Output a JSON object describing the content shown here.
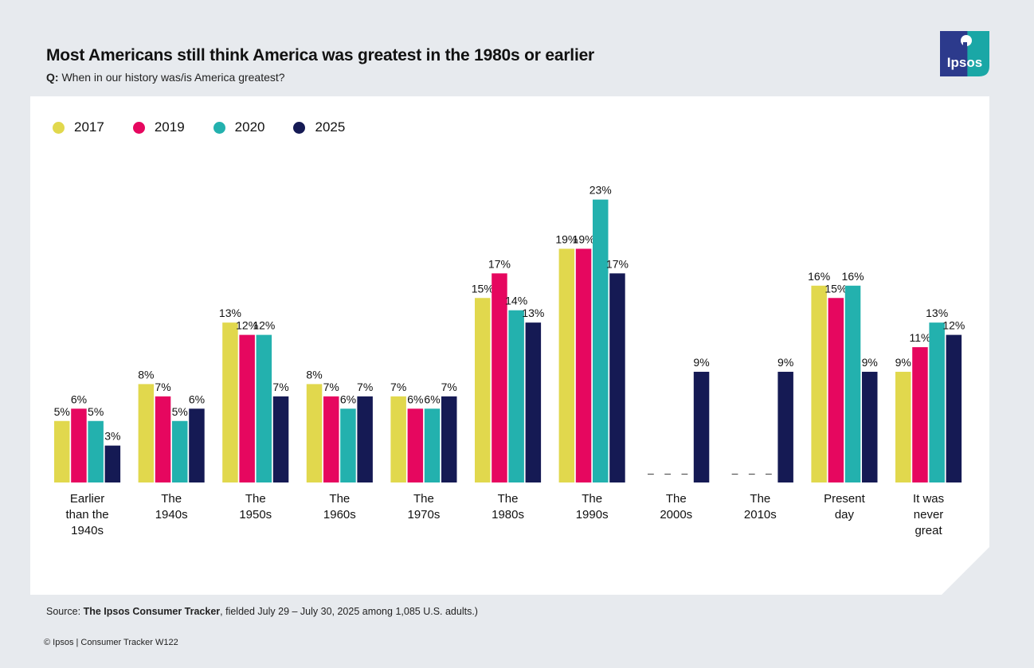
{
  "header": {
    "title": "Most Americans still think America was greatest in the 1980s or earlier",
    "question_prefix": "Q:",
    "question": "When in our history was/is America greatest?"
  },
  "brand": {
    "logo_text": "Ipsos"
  },
  "colors": {
    "2017": "#e1d84d",
    "2019": "#e6075f",
    "2020": "#23b1ae",
    "2025": "#151a54",
    "card": "#ffffff",
    "background": "#e7eaee"
  },
  "chart_data": {
    "type": "bar",
    "title": "Most Americans still think America was greatest in the 1980s or earlier",
    "xlabel": "",
    "ylabel": "",
    "ylim": [
      0,
      25
    ],
    "grid": false,
    "legend_position": "top-left",
    "categories": [
      "Earlier\nthan the\n1940s",
      "The\n1940s",
      "The\n1950s",
      "The\n1960s",
      "The\n1970s",
      "The\n1980s",
      "The\n1990s",
      "The\n2000s",
      "The\n2010s",
      "Present\nday",
      "It was\nnever\ngreat"
    ],
    "series": [
      {
        "name": "2017",
        "values": [
          5,
          8,
          13,
          8,
          7,
          15,
          19,
          null,
          null,
          16,
          9
        ]
      },
      {
        "name": "2019",
        "values": [
          6,
          7,
          12,
          7,
          6,
          17,
          19,
          null,
          null,
          15,
          11
        ]
      },
      {
        "name": "2020",
        "values": [
          5,
          5,
          12,
          6,
          6,
          14,
          23,
          null,
          null,
          16,
          13
        ]
      },
      {
        "name": "2025",
        "values": [
          3,
          6,
          7,
          7,
          7,
          13,
          17,
          9,
          9,
          9,
          12
        ]
      }
    ],
    "missing_marker": "–"
  },
  "footer": {
    "source_prefix": "Source: ",
    "source_bold": "The Ipsos Consumer Tracker",
    "source_rest": ", fielded July 29 – July 30, 2025 among 1,085 U.S. adults.)",
    "copyright": "© Ipsos | Consumer Tracker W122"
  }
}
